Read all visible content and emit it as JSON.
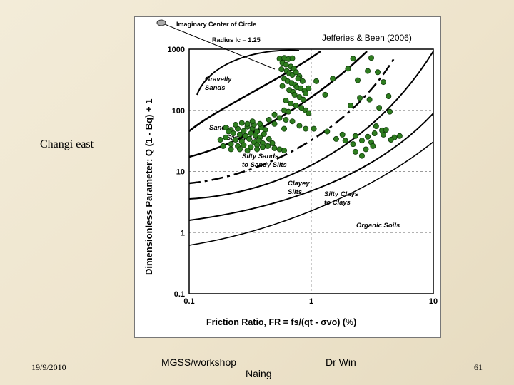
{
  "slide": {
    "label": "Changi east",
    "footer": {
      "date": "19/9/2010",
      "workshop": "MGSS/workshop",
      "author_last": "Naing",
      "author_first": "Dr Win",
      "page": "61"
    }
  },
  "chart_data": {
    "type": "scatter",
    "title": "Jefferies & Been (2006)",
    "xlabel": "Friction Ratio, FR = fs/(qt - σvo)  (%)",
    "ylabel": "Dimensionless Parameter: Q (1 - Bq) + 1",
    "xscale": "log",
    "yscale": "log",
    "xlim": [
      0.1,
      10
    ],
    "ylim": [
      0.1,
      1000
    ],
    "x_ticks": [
      "0.1",
      "1",
      "10"
    ],
    "y_ticks": [
      "0.1",
      "1",
      "10",
      "100",
      "1000"
    ],
    "annotations": {
      "center": "Imaginary Center of Circle",
      "radius": "Radius Ic = 1.25",
      "zones": [
        [
          "Gravelly",
          "Sands"
        ],
        [
          "Sands"
        ],
        [
          "Sands to",
          "Sandy silts"
        ],
        [
          "Silty Sands",
          "to Sandy Silts"
        ],
        [
          "Clayey",
          "Silts"
        ],
        [
          "Silty Clays",
          "to Clays"
        ],
        [
          "Organic Soils"
        ]
      ]
    },
    "series": [
      {
        "color": "#2e7d1f",
        "points": [
          [
            0.55,
            700
          ],
          [
            0.6,
            720
          ],
          [
            0.65,
            690
          ],
          [
            0.7,
            710
          ],
          [
            0.58,
            600
          ],
          [
            0.62,
            560
          ],
          [
            0.68,
            520
          ],
          [
            0.72,
            480
          ],
          [
            0.57,
            470
          ],
          [
            0.63,
            440
          ],
          [
            0.66,
            400
          ],
          [
            0.7,
            380
          ],
          [
            0.75,
            420
          ],
          [
            0.8,
            360
          ],
          [
            0.78,
            330
          ],
          [
            0.85,
            300
          ],
          [
            0.6,
            330
          ],
          [
            0.64,
            300
          ],
          [
            0.69,
            280
          ],
          [
            0.74,
            260
          ],
          [
            0.76,
            240
          ],
          [
            0.82,
            230
          ],
          [
            0.88,
            210
          ],
          [
            0.9,
            190
          ],
          [
            0.58,
            250
          ],
          [
            0.66,
            215
          ],
          [
            0.71,
            200
          ],
          [
            0.73,
            180
          ],
          [
            0.8,
            165
          ],
          [
            0.86,
            150
          ],
          [
            0.62,
            145
          ],
          [
            0.68,
            130
          ],
          [
            0.75,
            120
          ],
          [
            0.83,
            110
          ],
          [
            0.9,
            100
          ],
          [
            0.95,
            90
          ],
          [
            0.6,
            100
          ],
          [
            0.65,
            95
          ],
          [
            0.2,
            52
          ],
          [
            0.22,
            48
          ],
          [
            0.25,
            50
          ],
          [
            0.28,
            46
          ],
          [
            0.3,
            54
          ],
          [
            0.33,
            50
          ],
          [
            0.36,
            45
          ],
          [
            0.39,
            52
          ],
          [
            0.42,
            48
          ],
          [
            0.23,
            42
          ],
          [
            0.26,
            40
          ],
          [
            0.29,
            38
          ],
          [
            0.32,
            42
          ],
          [
            0.35,
            39
          ],
          [
            0.38,
            36
          ],
          [
            0.41,
            41
          ],
          [
            0.2,
            36
          ],
          [
            0.24,
            33
          ],
          [
            0.27,
            31
          ],
          [
            0.31,
            34
          ],
          [
            0.34,
            30
          ],
          [
            0.37,
            32
          ],
          [
            0.4,
            29
          ],
          [
            0.22,
            28
          ],
          [
            0.25,
            26
          ],
          [
            0.28,
            27
          ],
          [
            0.32,
            25
          ],
          [
            0.36,
            27
          ],
          [
            0.4,
            25
          ],
          [
            0.44,
            26
          ],
          [
            0.3,
            60
          ],
          [
            0.34,
            58
          ],
          [
            0.27,
            62
          ],
          [
            0.24,
            58
          ],
          [
            0.38,
            60
          ],
          [
            0.33,
            66
          ],
          [
            0.21,
            45
          ],
          [
            0.45,
            34
          ],
          [
            0.48,
            29
          ],
          [
            0.5,
            24
          ],
          [
            0.55,
            23
          ],
          [
            0.6,
            22
          ],
          [
            0.36,
            23
          ],
          [
            0.3,
            22
          ],
          [
            0.26,
            23
          ],
          [
            0.22,
            23
          ],
          [
            0.18,
            33
          ],
          [
            0.19,
            26
          ],
          [
            0.5,
            85
          ],
          [
            0.55,
            75
          ],
          [
            0.62,
            70
          ],
          [
            0.7,
            66
          ],
          [
            0.8,
            56
          ],
          [
            0.9,
            50
          ],
          [
            0.45,
            70
          ],
          [
            0.5,
            60
          ],
          [
            0.6,
            50
          ],
          [
            2.2,
            700
          ],
          [
            3.1,
            720
          ],
          [
            2.0,
            480
          ],
          [
            2.9,
            440
          ],
          [
            3.5,
            420
          ],
          [
            1.5,
            330
          ],
          [
            2.4,
            310
          ],
          [
            3.9,
            290
          ],
          [
            1.3,
            180
          ],
          [
            2.5,
            160
          ],
          [
            4.3,
            170
          ],
          [
            3.0,
            150
          ],
          [
            2.1,
            120
          ],
          [
            3.6,
            110
          ],
          [
            4.4,
            95
          ],
          [
            1.05,
            50
          ],
          [
            1.35,
            45
          ],
          [
            1.8,
            40
          ],
          [
            2.3,
            38
          ],
          [
            2.9,
            37
          ],
          [
            3.3,
            42
          ],
          [
            3.9,
            40
          ],
          [
            4.8,
            36
          ],
          [
            5.3,
            38
          ],
          [
            2.6,
            32
          ],
          [
            3.1,
            30
          ],
          [
            2.2,
            28
          ],
          [
            2.8,
            23
          ],
          [
            2.3,
            21
          ],
          [
            3.8,
            47
          ],
          [
            4.1,
            48
          ],
          [
            1.6,
            34
          ],
          [
            1.9,
            32
          ],
          [
            3.2,
            26
          ],
          [
            2.6,
            18
          ],
          [
            4.5,
            33
          ],
          [
            3.4,
            55
          ],
          [
            1.1,
            300
          ],
          [
            0.95,
            230
          ]
        ]
      }
    ]
  }
}
